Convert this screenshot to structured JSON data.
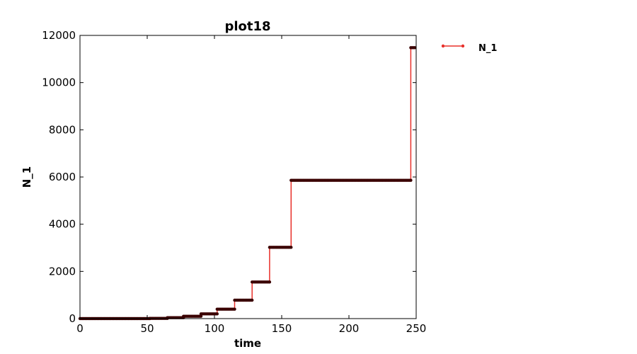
{
  "chart_data": {
    "type": "line",
    "title": "plot18",
    "xlabel": "time",
    "ylabel": "N_1",
    "xlim": [
      0,
      250
    ],
    "ylim": [
      0,
      12000
    ],
    "xticks": [
      0,
      50,
      100,
      150,
      200,
      250
    ],
    "yticks": [
      0,
      2000,
      4000,
      6000,
      8000,
      10000,
      12000
    ],
    "grid": false,
    "legend_position": "outside-top-right",
    "series": [
      {
        "name": "N_1",
        "line_color": "#e8302a",
        "marker_color": "#3a0000",
        "x": [
          0,
          52,
          52,
          65,
          65,
          77,
          77,
          90,
          90,
          102,
          102,
          115,
          115,
          128,
          128,
          141,
          141,
          157,
          157,
          246,
          246,
          249
        ],
        "y": [
          0,
          0,
          10,
          10,
          40,
          40,
          100,
          100,
          200,
          200,
          400,
          400,
          780,
          780,
          1550,
          1550,
          3020,
          3020,
          5860,
          5860,
          11480,
          11480
        ]
      }
    ]
  }
}
